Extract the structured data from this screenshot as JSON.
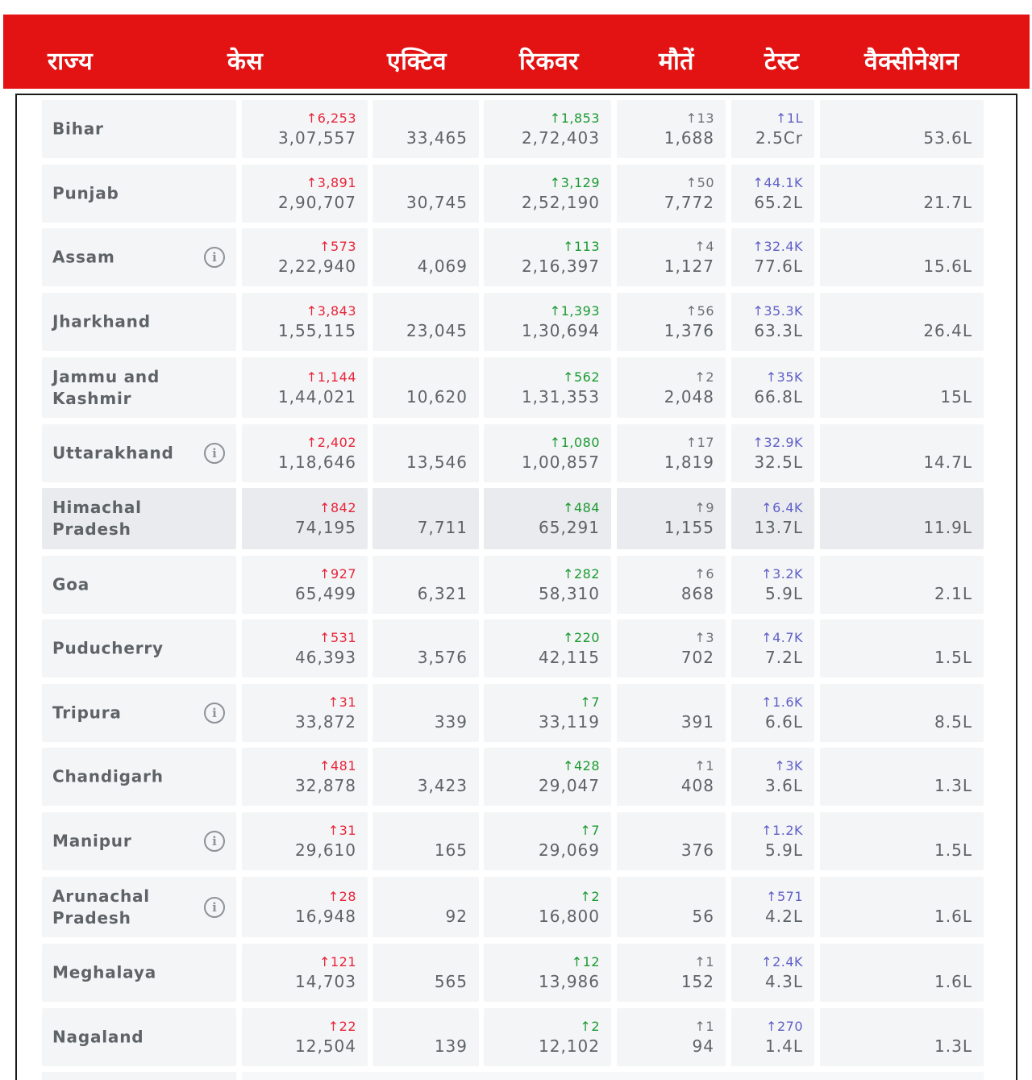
{
  "header": {
    "state": "राज्य",
    "cases": "केस",
    "active": "एक्टिव",
    "recovered": "रिकवर",
    "deaths": "मौतें",
    "tests": "टेस्ट",
    "vaccination": "वैक्सीनेशन"
  },
  "arrow": "↑",
  "info_symbol": "i",
  "colors": {
    "header_bg": "#e31313",
    "cases_delta": "#e8253b",
    "recovered_delta": "#1a9a32",
    "deaths_delta": "#6d7176",
    "tests_delta": "#5f5fc8"
  },
  "rows": [
    {
      "state": "Bihar",
      "info": false,
      "highlight": false,
      "cases_delta": "6,253",
      "cases": "3,07,557",
      "active": "33,465",
      "recovered_delta": "1,853",
      "recovered": "2,72,403",
      "deaths_delta": "13",
      "deaths": "1,688",
      "tests_delta": "1L",
      "tests": "2.5Cr",
      "vaccination": "53.6L"
    },
    {
      "state": "Punjab",
      "info": false,
      "highlight": false,
      "cases_delta": "3,891",
      "cases": "2,90,707",
      "active": "30,745",
      "recovered_delta": "3,129",
      "recovered": "2,52,190",
      "deaths_delta": "50",
      "deaths": "7,772",
      "tests_delta": "44.1K",
      "tests": "65.2L",
      "vaccination": "21.7L"
    },
    {
      "state": "Assam",
      "info": true,
      "highlight": false,
      "cases_delta": "573",
      "cases": "2,22,940",
      "active": "4,069",
      "recovered_delta": "113",
      "recovered": "2,16,397",
      "deaths_delta": "4",
      "deaths": "1,127",
      "tests_delta": "32.4K",
      "tests": "77.6L",
      "vaccination": "15.6L"
    },
    {
      "state": "Jharkhand",
      "info": false,
      "highlight": false,
      "cases_delta": "3,843",
      "cases": "1,55,115",
      "active": "23,045",
      "recovered_delta": "1,393",
      "recovered": "1,30,694",
      "deaths_delta": "56",
      "deaths": "1,376",
      "tests_delta": "35.3K",
      "tests": "63.3L",
      "vaccination": "26.4L"
    },
    {
      "state": "Jammu and Kashmir",
      "info": false,
      "highlight": false,
      "cases_delta": "1,144",
      "cases": "1,44,021",
      "active": "10,620",
      "recovered_delta": "562",
      "recovered": "1,31,353",
      "deaths_delta": "2",
      "deaths": "2,048",
      "tests_delta": "35K",
      "tests": "66.8L",
      "vaccination": "15L"
    },
    {
      "state": "Uttarakhand",
      "info": true,
      "highlight": false,
      "cases_delta": "2,402",
      "cases": "1,18,646",
      "active": "13,546",
      "recovered_delta": "1,080",
      "recovered": "1,00,857",
      "deaths_delta": "17",
      "deaths": "1,819",
      "tests_delta": "32.9K",
      "tests": "32.5L",
      "vaccination": "14.7L"
    },
    {
      "state": "Himachal Pradesh",
      "info": false,
      "highlight": true,
      "cases_delta": "842",
      "cases": "74,195",
      "active": "7,711",
      "recovered_delta": "484",
      "recovered": "65,291",
      "deaths_delta": "9",
      "deaths": "1,155",
      "tests_delta": "6.4K",
      "tests": "13.7L",
      "vaccination": "11.9L"
    },
    {
      "state": "Goa",
      "info": false,
      "highlight": false,
      "cases_delta": "927",
      "cases": "65,499",
      "active": "6,321",
      "recovered_delta": "282",
      "recovered": "58,310",
      "deaths_delta": "6",
      "deaths": "868",
      "tests_delta": "3.2K",
      "tests": "5.9L",
      "vaccination": "2.1L"
    },
    {
      "state": "Puducherry",
      "info": false,
      "highlight": false,
      "cases_delta": "531",
      "cases": "46,393",
      "active": "3,576",
      "recovered_delta": "220",
      "recovered": "42,115",
      "deaths_delta": "3",
      "deaths": "702",
      "tests_delta": "4.7K",
      "tests": "7.2L",
      "vaccination": "1.5L"
    },
    {
      "state": "Tripura",
      "info": true,
      "highlight": false,
      "cases_delta": "31",
      "cases": "33,872",
      "active": "339",
      "recovered_delta": "7",
      "recovered": "33,119",
      "deaths_delta": "",
      "deaths": "391",
      "tests_delta": "1.6K",
      "tests": "6.6L",
      "vaccination": "8.5L"
    },
    {
      "state": "Chandigarh",
      "info": false,
      "highlight": false,
      "cases_delta": "481",
      "cases": "32,878",
      "active": "3,423",
      "recovered_delta": "428",
      "recovered": "29,047",
      "deaths_delta": "1",
      "deaths": "408",
      "tests_delta": "3K",
      "tests": "3.6L",
      "vaccination": "1.3L"
    },
    {
      "state": "Manipur",
      "info": true,
      "highlight": false,
      "cases_delta": "31",
      "cases": "29,610",
      "active": "165",
      "recovered_delta": "7",
      "recovered": "29,069",
      "deaths_delta": "",
      "deaths": "376",
      "tests_delta": "1.2K",
      "tests": "5.9L",
      "vaccination": "1.5L"
    },
    {
      "state": "Arunachal Pradesh",
      "info": true,
      "highlight": false,
      "cases_delta": "28",
      "cases": "16,948",
      "active": "92",
      "recovered_delta": "2",
      "recovered": "16,800",
      "deaths_delta": "",
      "deaths": "56",
      "tests_delta": "571",
      "tests": "4.2L",
      "vaccination": "1.6L"
    },
    {
      "state": "Meghalaya",
      "info": false,
      "highlight": false,
      "cases_delta": "121",
      "cases": "14,703",
      "active": "565",
      "recovered_delta": "12",
      "recovered": "13,986",
      "deaths_delta": "1",
      "deaths": "152",
      "tests_delta": "2.4K",
      "tests": "4.3L",
      "vaccination": "1.6L"
    },
    {
      "state": "Nagaland",
      "info": false,
      "highlight": false,
      "cases_delta": "22",
      "cases": "12,504",
      "active": "139",
      "recovered_delta": "2",
      "recovered": "12,102",
      "deaths_delta": "1",
      "deaths": "94",
      "tests_delta": "270",
      "tests": "1.4L",
      "vaccination": "1.3L"
    }
  ]
}
